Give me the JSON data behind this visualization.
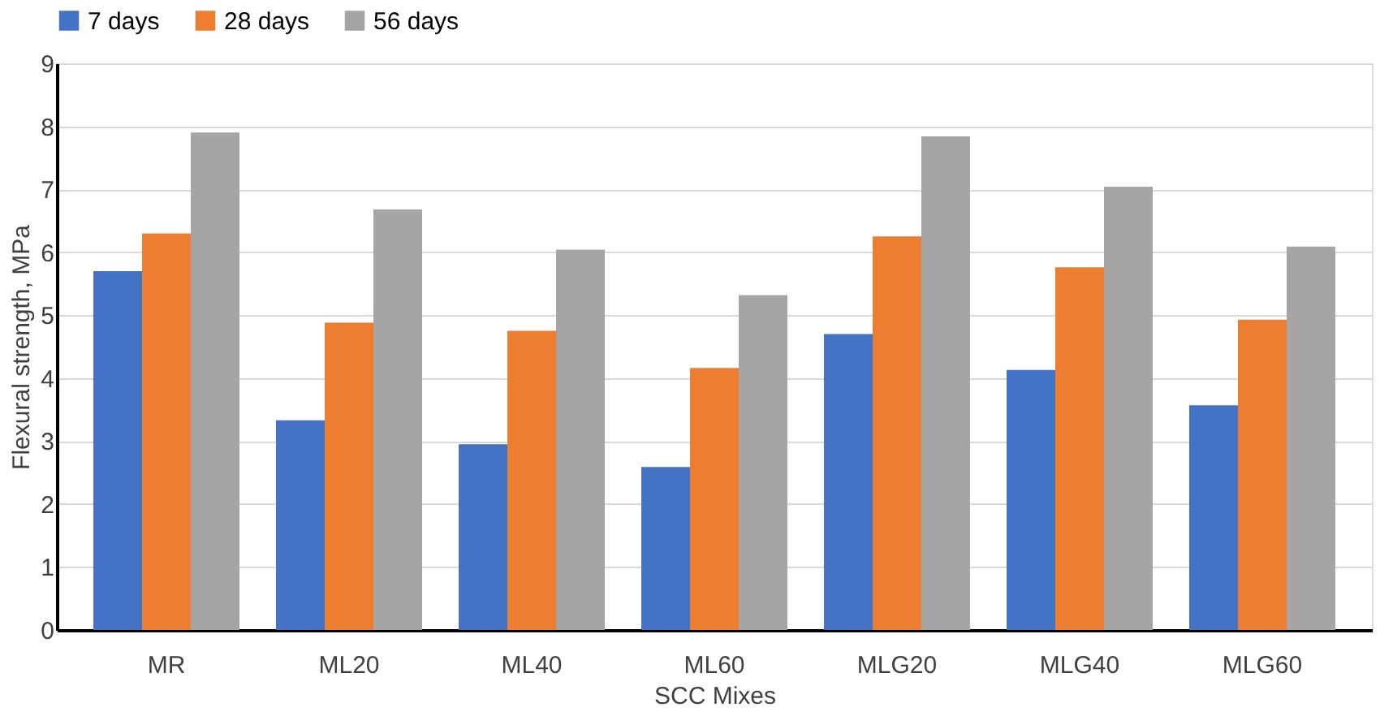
{
  "chart_data": {
    "type": "bar",
    "xlabel": "SCC Mixes",
    "ylabel": "Flexural strength, MPa",
    "categories": [
      "MR",
      "ML20",
      "ML40",
      "ML60",
      "MLG20",
      "MLG40",
      "MLG60"
    ],
    "series": [
      {
        "name": "7 days",
        "color": "#4472c4",
        "values": [
          5.7,
          3.33,
          2.95,
          2.59,
          4.7,
          4.13,
          3.57
        ]
      },
      {
        "name": "28 days",
        "color": "#ed7d31",
        "values": [
          6.3,
          4.88,
          4.75,
          4.16,
          6.25,
          5.76,
          4.93
        ]
      },
      {
        "name": "56 days",
        "color": "#a5a5a5",
        "values": [
          7.9,
          6.68,
          6.04,
          5.32,
          7.84,
          7.04,
          6.09
        ]
      }
    ],
    "ylim": [
      0,
      9
    ],
    "yticks": [
      0,
      1,
      2,
      3,
      4,
      5,
      6,
      7,
      8,
      9
    ],
    "grid": "y",
    "legend": "top"
  }
}
